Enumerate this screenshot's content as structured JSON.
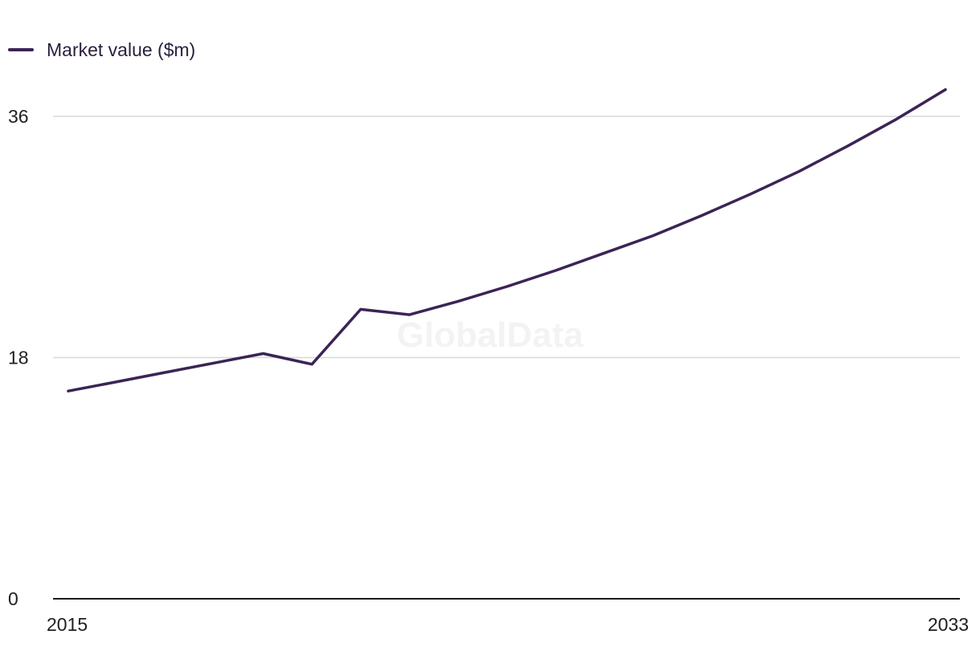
{
  "chart_data": {
    "type": "line",
    "title": "",
    "xlabel": "",
    "ylabel": "",
    "x": [
      2015,
      2016,
      2017,
      2018,
      2019,
      2020,
      2021,
      2022,
      2023,
      2024,
      2025,
      2026,
      2027,
      2028,
      2029,
      2030,
      2031,
      2032,
      2033
    ],
    "series": [
      {
        "name": "Market value ($m)",
        "color": "#3b2456",
        "values": [
          15.5,
          16.2,
          16.9,
          17.6,
          18.3,
          17.5,
          21.6,
          21.2,
          22.2,
          23.3,
          24.5,
          25.8,
          27.1,
          28.6,
          30.2,
          31.9,
          33.8,
          35.8,
          38.0
        ]
      }
    ],
    "ylim": [
      0,
      36
    ],
    "y_ticks": [
      "0",
      "18",
      "36"
    ],
    "x_tick_labels": [
      "2015",
      "2033"
    ],
    "grid": true,
    "legend_position": "top-left",
    "watermark": "GlobalData"
  }
}
